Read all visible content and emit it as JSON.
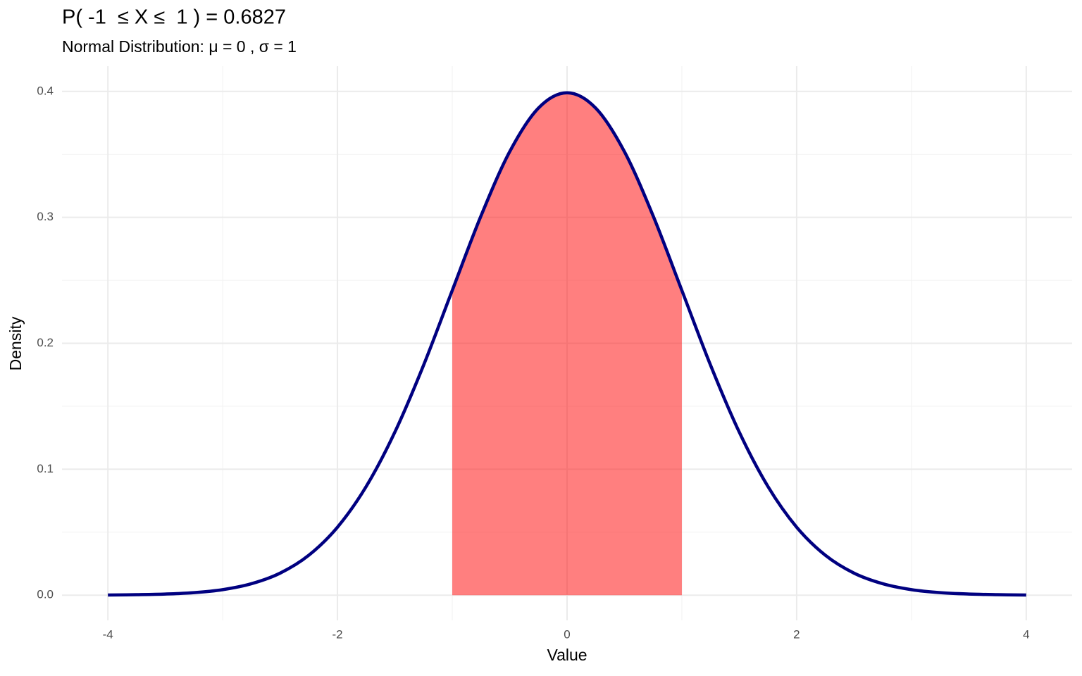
{
  "chart_data": {
    "type": "line",
    "title": "P( -1  ≤ X ≤  1 ) = 0.6827",
    "subtitle": "Normal Distribution: μ = 0 , σ = 1",
    "x_label": "Value",
    "y_label": "Density",
    "xlim": [
      -4.4,
      4.4
    ],
    "ylim": [
      -0.02,
      0.42
    ],
    "xticks": [
      -4,
      -2,
      0,
      2,
      4
    ],
    "yticks": [
      {
        "value": 0,
        "label": "0.0"
      },
      0.1,
      0.2,
      0.3,
      0.4
    ],
    "x_minor_grid": [
      -3,
      -1,
      1,
      3
    ],
    "y_minor_grid": [
      0.05,
      0.15,
      0.25,
      0.35
    ],
    "grid": true,
    "series": [
      {
        "fill": true,
        "color": "#ff0000",
        "opacity": 0.5,
        "x": [
          -1,
          -0.75,
          -0.5,
          -0.25,
          0,
          0.25,
          0.5,
          0.75,
          1
        ],
        "values": [
          0.242,
          0.3011,
          0.3521,
          0.3867,
          0.3989,
          0.3867,
          0.3521,
          0.3011,
          0.242
        ]
      },
      {
        "fill": false,
        "color": "#000080",
        "x": [
          -4,
          -3.75,
          -3.5,
          -3.25,
          -3,
          -2.75,
          -2.5,
          -2.25,
          -2,
          -1.75,
          -1.5,
          -1.25,
          -1,
          -0.75,
          -0.5,
          -0.25,
          0,
          0.25,
          0.5,
          0.75,
          1,
          1.25,
          1.5,
          1.75,
          2,
          2.25,
          2.5,
          2.75,
          3,
          3.25,
          3.5,
          3.75,
          4
        ],
        "values": [
          0.0001,
          0.0004,
          0.0009,
          0.002,
          0.0044,
          0.0091,
          0.0175,
          0.0317,
          0.054,
          0.0863,
          0.1295,
          0.1826,
          0.242,
          0.3011,
          0.3521,
          0.3867,
          0.3989,
          0.3867,
          0.3521,
          0.3011,
          0.242,
          0.1826,
          0.1295,
          0.0863,
          0.054,
          0.0317,
          0.0175,
          0.0091,
          0.0044,
          0.002,
          0.0009,
          0.0004,
          0.0001
        ]
      }
    ]
  }
}
